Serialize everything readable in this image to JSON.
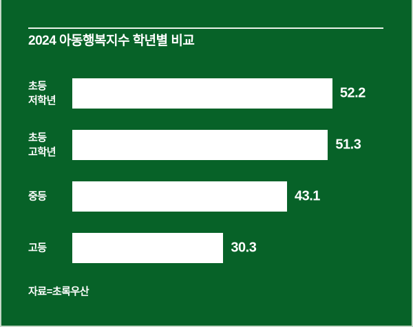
{
  "colors": {
    "background": "#076228",
    "bar_fill": "#ffffff",
    "text": "#ffffff",
    "title_rule": "#edf3ec",
    "outer_edge": "#c6d8c8"
  },
  "chart_data": {
    "type": "bar",
    "orientation": "horizontal",
    "title": "2024 아동행복지수 학년별 비교",
    "categories": [
      "초등\n저학년",
      "초등\n고학년",
      "중등",
      "고등"
    ],
    "values": [
      52.2,
      51.3,
      43.1,
      30.3
    ],
    "value_labels": [
      "52.2",
      "51.3",
      "43.1",
      "30.3"
    ],
    "value_label_position": "right-of-bar",
    "grid": false,
    "legend": false,
    "source": "자료=초록우산"
  }
}
